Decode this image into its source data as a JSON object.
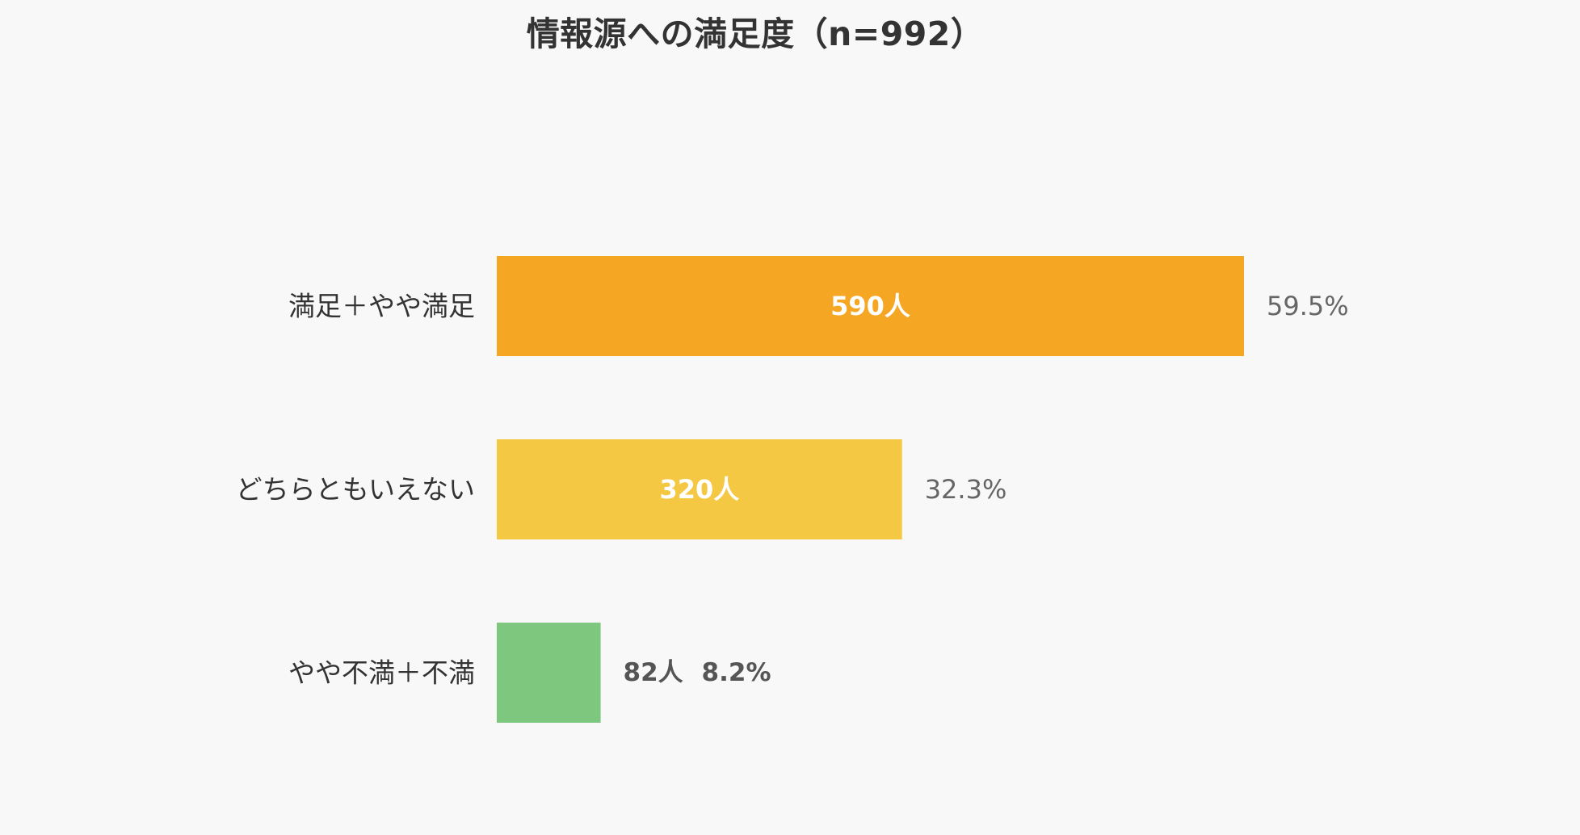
{
  "chart_data": {
    "type": "bar",
    "orientation": "horizontal",
    "title": "情報源への満足度（n=992）",
    "categories": [
      "満足＋やや満足",
      "どちらともいえない",
      "やや不満＋不満"
    ],
    "values": [
      590,
      320,
      82
    ],
    "count_labels": [
      "590人",
      "320人",
      "82人"
    ],
    "percent_labels": [
      "59.5%",
      "32.3%",
      "8.2%"
    ],
    "colors": [
      "#f5a623",
      "#f4c842",
      "#7ec77e"
    ],
    "xlabel": "",
    "ylabel": "",
    "xlim": [
      0,
      590
    ],
    "grid": false,
    "legend": "none"
  }
}
